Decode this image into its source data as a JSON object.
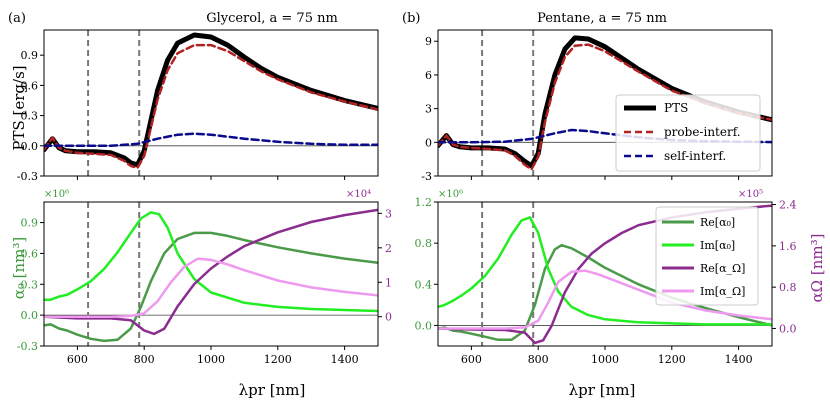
{
  "figure": {
    "panel_labels": [
      "(a)",
      "(b)"
    ],
    "legend_top": [
      "PTS",
      "probe-interf.",
      "self-interf."
    ],
    "legend_bottom": [
      "Re[α₀]",
      "Im[α₀]",
      "Re[α_Ω]",
      "Im[α_Ω]"
    ]
  },
  "chart_data": [
    {
      "id": "glycerol_pts",
      "type": "line",
      "title": "Glycerol, a = 75 nm",
      "xlabel": "",
      "ylabel": "PTS [erg/s]",
      "xlim": [
        500,
        1500
      ],
      "ylim": [
        -0.3,
        1.15
      ],
      "yticks": [
        "-0.3",
        "0.0",
        "0.3",
        "0.6",
        "0.9"
      ],
      "vlines": [
        632,
        785
      ],
      "series": [
        {
          "name": "PTS",
          "color": "#000000",
          "x": [
            500,
            525,
            545,
            565,
            600,
            650,
            700,
            740,
            760,
            780,
            800,
            820,
            840,
            870,
            900,
            950,
            1000,
            1050,
            1100,
            1150,
            1200,
            1300,
            1400,
            1500
          ],
          "y": [
            -0.04,
            0.07,
            -0.02,
            -0.05,
            -0.06,
            -0.06,
            -0.07,
            -0.12,
            -0.17,
            -0.19,
            -0.05,
            0.25,
            0.55,
            0.85,
            1.02,
            1.1,
            1.08,
            1.0,
            0.88,
            0.77,
            0.68,
            0.55,
            0.45,
            0.37
          ]
        },
        {
          "name": "probe-interf.",
          "color": "#b22222",
          "x": [
            500,
            525,
            545,
            565,
            600,
            650,
            700,
            740,
            760,
            780,
            800,
            820,
            840,
            870,
            900,
            950,
            1000,
            1050,
            1100,
            1150,
            1200,
            1300,
            1400,
            1500
          ],
          "y": [
            -0.04,
            0.08,
            -0.02,
            -0.05,
            -0.07,
            -0.08,
            -0.09,
            -0.15,
            -0.2,
            -0.22,
            -0.1,
            0.18,
            0.46,
            0.75,
            0.92,
            1.0,
            1.0,
            0.94,
            0.84,
            0.74,
            0.66,
            0.53,
            0.44,
            0.36
          ]
        },
        {
          "name": "self-interf.",
          "color": "#0a0a8c",
          "x": [
            500,
            600,
            700,
            780,
            840,
            900,
            950,
            1000,
            1100,
            1200,
            1300,
            1400,
            1500
          ],
          "y": [
            0.0,
            0.0,
            0.0,
            0.02,
            0.07,
            0.11,
            0.12,
            0.11,
            0.07,
            0.04,
            0.02,
            0.01,
            0.01
          ]
        }
      ]
    },
    {
      "id": "pentane_pts",
      "type": "line",
      "title": "Pentane, a = 75 nm",
      "xlabel": "",
      "ylabel": "",
      "xlim": [
        500,
        1500
      ],
      "ylim": [
        -3,
        10
      ],
      "yticks": [
        "-3",
        "0",
        "3",
        "6",
        "9"
      ],
      "vlines": [
        632,
        785
      ],
      "series": [
        {
          "name": "PTS",
          "color": "#000000",
          "x": [
            500,
            525,
            545,
            565,
            600,
            650,
            700,
            730,
            760,
            780,
            800,
            820,
            850,
            880,
            910,
            950,
            1000,
            1050,
            1100,
            1200,
            1300,
            1400,
            1500
          ],
          "y": [
            -0.3,
            0.6,
            -0.2,
            -0.4,
            -0.5,
            -0.5,
            -0.6,
            -1.0,
            -1.7,
            -2.1,
            -1.0,
            2.5,
            6.0,
            8.3,
            9.3,
            9.2,
            8.5,
            7.5,
            6.5,
            4.8,
            3.6,
            2.7,
            2.0
          ]
        },
        {
          "name": "probe-interf.",
          "color": "#b22222",
          "x": [
            500,
            525,
            545,
            565,
            600,
            650,
            700,
            730,
            760,
            780,
            800,
            820,
            850,
            880,
            910,
            950,
            1000,
            1050,
            1100,
            1200,
            1300,
            1400,
            1500
          ],
          "y": [
            -0.3,
            0.6,
            -0.2,
            -0.4,
            -0.5,
            -0.6,
            -0.7,
            -1.2,
            -2.0,
            -2.4,
            -1.3,
            1.8,
            5.3,
            7.6,
            8.6,
            8.7,
            8.1,
            7.2,
            6.3,
            4.6,
            3.5,
            2.6,
            2.0
          ]
        },
        {
          "name": "self-interf.",
          "color": "#0a0a8c",
          "x": [
            500,
            600,
            700,
            780,
            850,
            900,
            950,
            1000,
            1100,
            1200,
            1300,
            1400,
            1500
          ],
          "y": [
            0.0,
            0.0,
            0.05,
            0.3,
            0.8,
            1.1,
            1.0,
            0.8,
            0.45,
            0.2,
            0.1,
            0.05,
            0.02
          ]
        }
      ]
    },
    {
      "id": "glycerol_alpha",
      "type": "line",
      "title": "",
      "xlabel": "λpr [nm]",
      "ylabel": "α₀ [nm³]",
      "ylabel2": "αΩ [nm³]",
      "xlim": [
        500,
        1500
      ],
      "xticks": [
        "600",
        "800",
        "1000",
        "1200",
        "1400"
      ],
      "ylim": [
        -0.3,
        1.1
      ],
      "yticks": [
        "-0.3",
        "0.0",
        "0.3",
        "0.6",
        "0.9"
      ],
      "multiplier_left": "×10⁶",
      "ylim2": [
        -0.85,
        3.33
      ],
      "yticks2": [
        "0",
        "1",
        "2",
        "3"
      ],
      "multiplier_right": "×10⁴",
      "vlines": [
        632,
        785
      ],
      "series": [
        {
          "name": "Re[α₀]",
          "axis": "left",
          "color": "#4a9a4a",
          "x": [
            500,
            520,
            545,
            570,
            600,
            640,
            680,
            720,
            760,
            790,
            820,
            860,
            900,
            950,
            1000,
            1050,
            1100,
            1200,
            1300,
            1400,
            1500
          ],
          "y": [
            -0.1,
            -0.09,
            -0.13,
            -0.15,
            -0.19,
            -0.23,
            -0.25,
            -0.24,
            -0.13,
            0.08,
            0.33,
            0.6,
            0.74,
            0.8,
            0.8,
            0.77,
            0.73,
            0.66,
            0.6,
            0.55,
            0.51
          ]
        },
        {
          "name": "Im[α₀]",
          "axis": "left",
          "color": "#22ee22",
          "x": [
            500,
            520,
            545,
            570,
            600,
            640,
            680,
            720,
            760,
            790,
            820,
            845,
            870,
            900,
            950,
            1000,
            1100,
            1200,
            1300,
            1400,
            1500
          ],
          "y": [
            0.15,
            0.15,
            0.18,
            0.2,
            0.25,
            0.33,
            0.45,
            0.61,
            0.8,
            0.94,
            1.0,
            0.98,
            0.85,
            0.6,
            0.35,
            0.22,
            0.12,
            0.08,
            0.06,
            0.05,
            0.04
          ]
        },
        {
          "name": "Re[αΩ]",
          "axis": "right",
          "color": "#8b2c8f",
          "x": [
            500,
            600,
            700,
            760,
            800,
            830,
            860,
            900,
            950,
            1000,
            1050,
            1100,
            1200,
            1300,
            1400,
            1500
          ],
          "y": [
            0.0,
            -0.05,
            -0.05,
            -0.1,
            -0.4,
            -0.5,
            -0.35,
            0.3,
            0.95,
            1.4,
            1.75,
            2.05,
            2.45,
            2.75,
            2.95,
            3.1
          ]
        },
        {
          "name": "Im[αΩ]",
          "axis": "right",
          "color": "#ee9aee",
          "x": [
            500,
            600,
            700,
            760,
            800,
            840,
            880,
            920,
            960,
            1000,
            1050,
            1100,
            1200,
            1300,
            1400,
            1500
          ],
          "y": [
            0.0,
            0.0,
            0.0,
            0.02,
            0.1,
            0.45,
            1.0,
            1.45,
            1.68,
            1.65,
            1.52,
            1.35,
            1.05,
            0.85,
            0.72,
            0.62
          ]
        }
      ]
    },
    {
      "id": "pentane_alpha",
      "type": "line",
      "title": "",
      "xlabel": "λpr [nm]",
      "ylabel": "",
      "ylabel2": "αΩ [nm³]",
      "xlim": [
        500,
        1500
      ],
      "xticks": [
        "600",
        "800",
        "1000",
        "1200",
        "1400"
      ],
      "ylim": [
        -0.2,
        1.2
      ],
      "yticks": [
        "0.0",
        "0.4",
        "0.8",
        "1.2"
      ],
      "multiplier_left": "×10⁶",
      "ylim2": [
        -0.34,
        2.45
      ],
      "yticks2": [
        "0.0",
        "0.8",
        "1.6",
        "2.4"
      ],
      "multiplier_right": "×10⁵",
      "vlines": [
        632,
        785
      ],
      "series": [
        {
          "name": "Re[α₀]",
          "axis": "left",
          "color": "#4a9a4a",
          "x": [
            500,
            520,
            545,
            570,
            600,
            640,
            680,
            720,
            760,
            790,
            820,
            850,
            870,
            900,
            950,
            1000,
            1100,
            1200,
            1300,
            1400,
            1500
          ],
          "y": [
            -0.03,
            -0.02,
            -0.05,
            -0.06,
            -0.08,
            -0.11,
            -0.14,
            -0.14,
            -0.05,
            0.2,
            0.55,
            0.74,
            0.78,
            0.75,
            0.66,
            0.56,
            0.4,
            0.27,
            0.17,
            0.08,
            0.0
          ]
        },
        {
          "name": "Im[α₀]",
          "axis": "left",
          "color": "#22ee22",
          "x": [
            500,
            520,
            545,
            570,
            600,
            640,
            680,
            720,
            750,
            775,
            800,
            830,
            860,
            900,
            950,
            1000,
            1100,
            1200,
            1300,
            1400,
            1500
          ],
          "y": [
            0.18,
            0.2,
            0.24,
            0.29,
            0.36,
            0.48,
            0.65,
            0.88,
            1.02,
            1.05,
            0.9,
            0.55,
            0.33,
            0.18,
            0.1,
            0.06,
            0.03,
            0.02,
            0.01,
            0.01,
            0.01
          ]
        },
        {
          "name": "Re[αΩ]",
          "axis": "right",
          "color": "#8b2c8f",
          "x": [
            500,
            600,
            700,
            760,
            790,
            815,
            840,
            880,
            920,
            960,
            1000,
            1050,
            1100,
            1200,
            1300,
            1400,
            1500
          ],
          "y": [
            0.0,
            -0.02,
            -0.03,
            -0.08,
            -0.28,
            -0.23,
            0.05,
            0.7,
            1.15,
            1.45,
            1.65,
            1.85,
            2.0,
            2.15,
            2.25,
            2.32,
            2.38
          ]
        },
        {
          "name": "Im[αΩ]",
          "axis": "right",
          "color": "#ee9aee",
          "x": [
            500,
            600,
            700,
            760,
            800,
            830,
            860,
            900,
            940,
            980,
            1020,
            1100,
            1200,
            1300,
            1400,
            1500
          ],
          "y": [
            0.0,
            0.0,
            0.0,
            0.02,
            0.15,
            0.5,
            0.9,
            1.1,
            1.12,
            1.05,
            0.95,
            0.75,
            0.5,
            0.35,
            0.25,
            0.18
          ]
        }
      ]
    }
  ]
}
